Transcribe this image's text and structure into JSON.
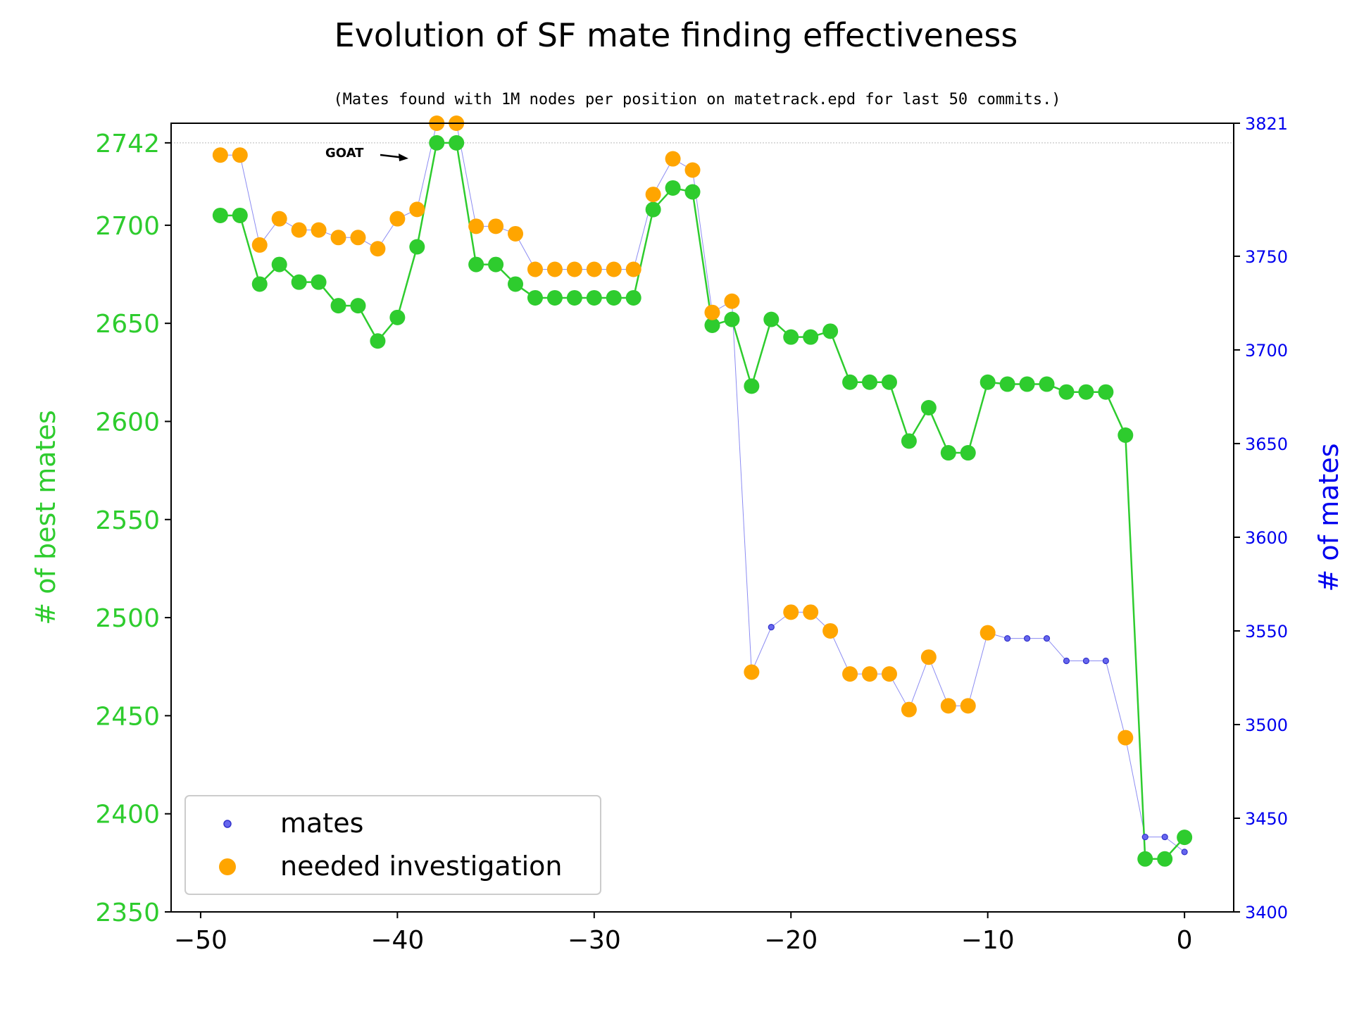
{
  "chart_data": {
    "type": "line",
    "title": "Evolution of SF mate finding effectiveness",
    "subtitle": "(Mates found with 1M nodes per position on matetrack.epd for last 50 commits.)",
    "xlabel": "",
    "ylabel_left": "# of best mates",
    "ylabel_right": "# of mates",
    "xlim": [
      -51.5,
      2.5
    ],
    "ylim_left": [
      2350,
      2752
    ],
    "ylim_right": [
      3400,
      3821
    ],
    "x_ticks": [
      -50,
      -40,
      -30,
      -20,
      -10,
      0
    ],
    "y_left_ticks": [
      2350,
      2400,
      2450,
      2500,
      2550,
      2600,
      2650,
      2700,
      2742
    ],
    "y_right_ticks": [
      3400,
      3450,
      3500,
      3550,
      3600,
      3650,
      3700,
      3750,
      3821
    ],
    "x_tick_labels": [
      "−50",
      "−40",
      "−30",
      "−20",
      "−10",
      "0"
    ],
    "y_left_tick_labels": [
      "2350",
      "2400",
      "2450",
      "2500",
      "2550",
      "2600",
      "2650",
      "2700",
      "2742"
    ],
    "y_right_tick_labels": [
      "3400",
      "3450",
      "3500",
      "3550",
      "3600",
      "3650",
      "3700",
      "3750",
      "3821"
    ],
    "annotation": {
      "text": "GOAT",
      "x": -38,
      "y": 2742
    },
    "x": [
      -49,
      -48,
      -47,
      -46,
      -45,
      -44,
      -43,
      -42,
      -41,
      -40,
      -39,
      -38,
      -37,
      -36,
      -35,
      -34,
      -33,
      -32,
      -31,
      -30,
      -29,
      -28,
      -27,
      -26,
      -25,
      -24,
      -23,
      -22,
      -21,
      -20,
      -19,
      -18,
      -17,
      -16,
      -15,
      -14,
      -13,
      -12,
      -11,
      -10,
      -9,
      -8,
      -7,
      -6,
      -5,
      -4,
      -3,
      -2,
      -1,
      0
    ],
    "series": [
      {
        "name": "best mates",
        "axis": "left",
        "color": "#2ecc2e",
        "values": [
          2705,
          2705,
          2670,
          2680,
          2671,
          2671,
          2659,
          2659,
          2641,
          2653,
          2689,
          2742,
          2742,
          2680,
          2680,
          2670,
          2663,
          2663,
          2663,
          2663,
          2663,
          2663,
          2708,
          2719,
          2717,
          2649,
          2652,
          2618,
          2652,
          2643,
          2643,
          2646,
          2620,
          2620,
          2620,
          2590,
          2607,
          2584,
          2584,
          2620,
          2619,
          2619,
          2619,
          2615,
          2615,
          2615,
          2593,
          2377,
          2377,
          2388
        ]
      },
      {
        "name": "mates",
        "axis": "right",
        "color": "#5555ee",
        "values": [
          3804,
          3804,
          3756,
          3770,
          3764,
          3764,
          3760,
          3760,
          3754,
          3770,
          3775,
          3821,
          3821,
          3766,
          3766,
          3762,
          3743,
          3743,
          3743,
          3743,
          3743,
          3743,
          3783,
          3802,
          3796,
          3720,
          3726,
          3528,
          3552,
          3560,
          3560,
          3550,
          3527,
          3527,
          3527,
          3508,
          3536,
          3510,
          3510,
          3549,
          3546,
          3546,
          3546,
          3534,
          3534,
          3534,
          3493,
          3440,
          3440,
          3432
        ]
      },
      {
        "name": "needed investigation",
        "axis": "right",
        "color": "#ffa500",
        "values": [
          3804,
          3804,
          3756,
          3770,
          3764,
          3764,
          3760,
          3760,
          3754,
          3770,
          3775,
          3821,
          3821,
          3766,
          3766,
          3762,
          3743,
          3743,
          3743,
          3743,
          3743,
          3743,
          3783,
          3802,
          3796,
          3720,
          3726,
          3528,
          null,
          3560,
          3560,
          3550,
          3527,
          3527,
          3527,
          3508,
          3536,
          3510,
          3510,
          3549,
          null,
          null,
          null,
          null,
          null,
          null,
          3493,
          null,
          null,
          null
        ]
      }
    ],
    "legend": {
      "location": "lower-left",
      "entries": [
        {
          "label": "mates",
          "color": "#5555ee"
        },
        {
          "label": "needed investigation",
          "color": "#ffa500"
        }
      ]
    },
    "grid": false
  }
}
